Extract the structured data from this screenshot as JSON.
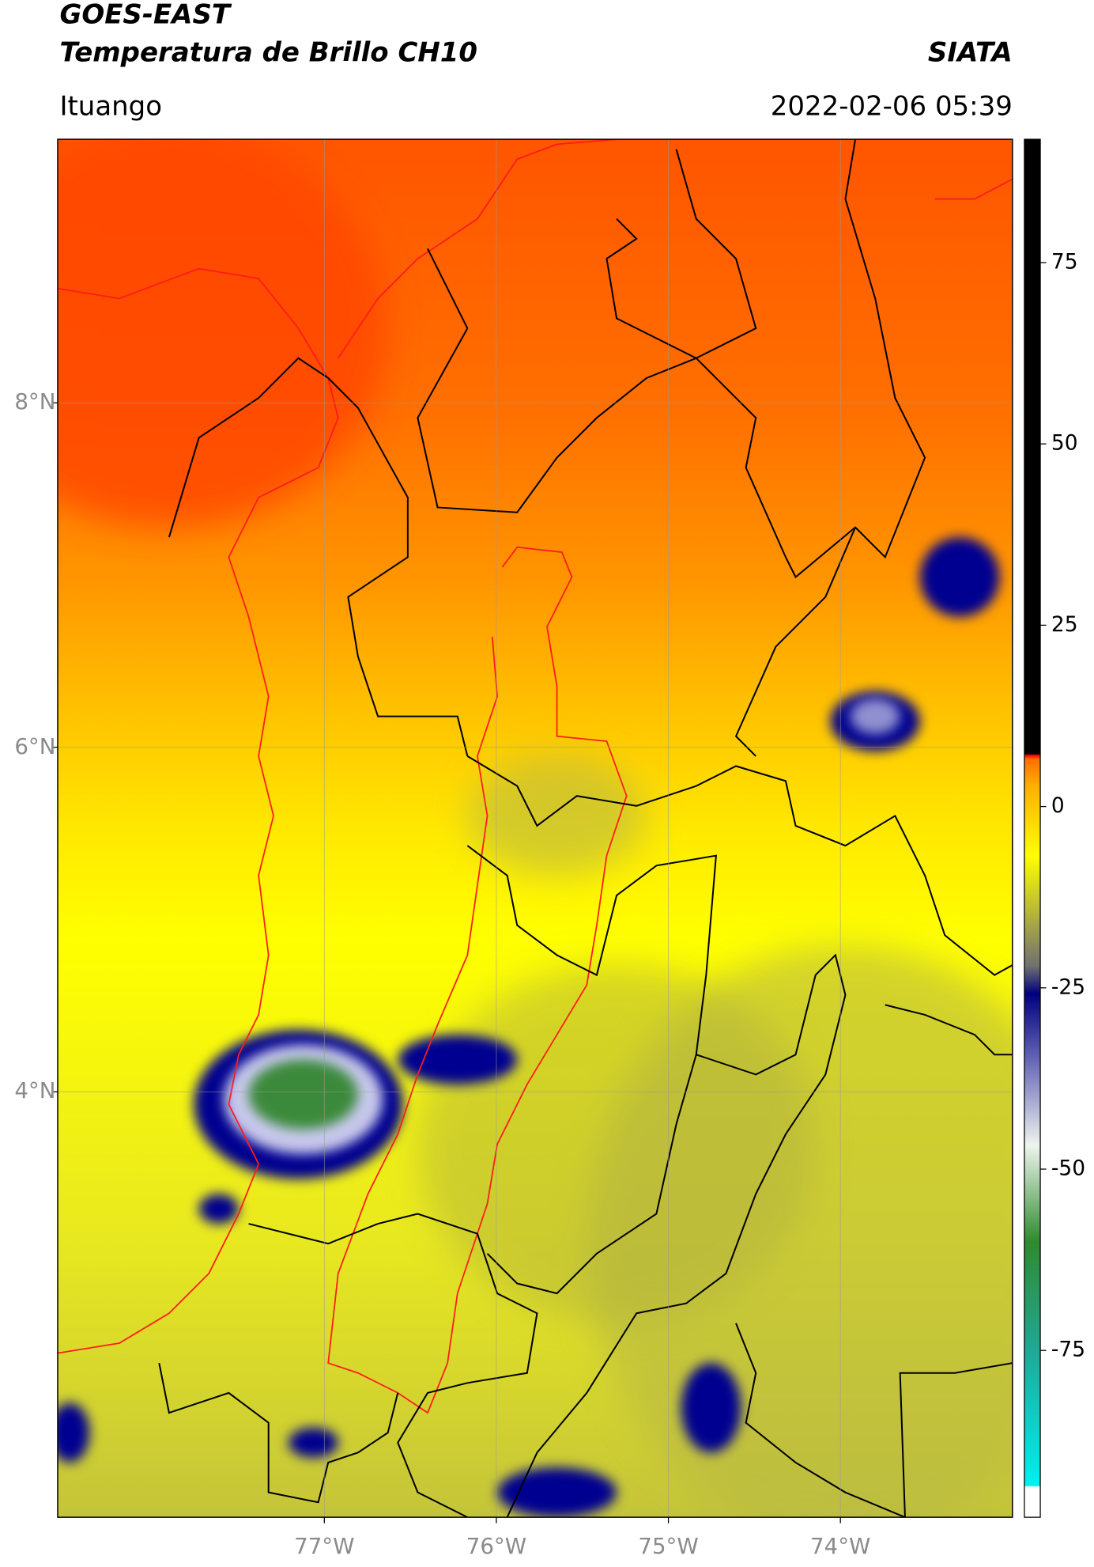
{
  "header": {
    "title": "GOES-EAST",
    "subtitle": "Temperatura de Brillo CH10",
    "source": "SIATA",
    "location": "Ituango",
    "datetime": "2022-02-06 05:39"
  },
  "map": {
    "xlim": [
      -78.55,
      -73.0
    ],
    "ylim": [
      1.53,
      9.53
    ],
    "xticks": [
      {
        "value": -77,
        "label": "77°W"
      },
      {
        "value": -76,
        "label": "76°W"
      },
      {
        "value": -75,
        "label": "75°W"
      },
      {
        "value": -74,
        "label": "74°W"
      }
    ],
    "yticks": [
      {
        "value": 8,
        "label": "8°N"
      },
      {
        "value": 6,
        "label": "6°N"
      },
      {
        "value": 4,
        "label": "4°N"
      }
    ],
    "grid": true
  },
  "colorbar": {
    "lim": [
      -98,
      92
    ],
    "ticks": [
      75,
      50,
      25,
      0,
      -25,
      -50,
      -75
    ]
  }
}
